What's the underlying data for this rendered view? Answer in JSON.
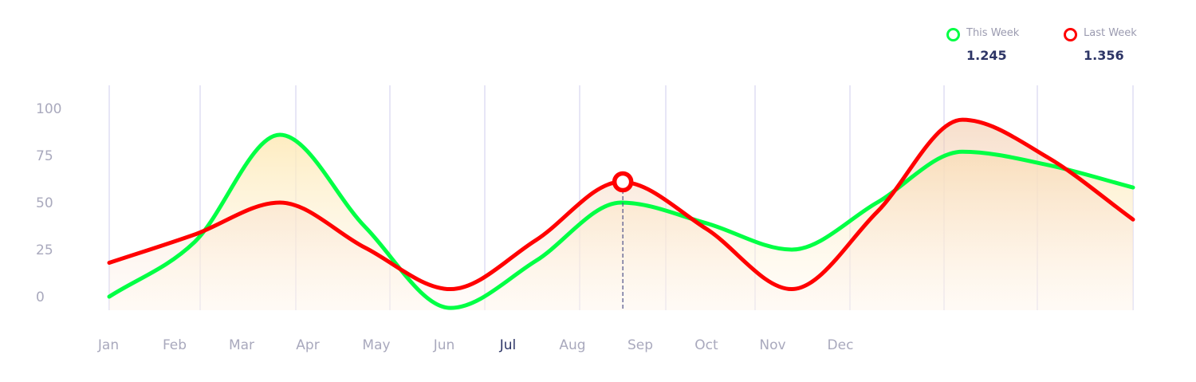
{
  "legend": {
    "items": [
      {
        "label": "This Week",
        "value": "1.245",
        "color": "#00ff44"
      },
      {
        "label": "Last Week",
        "value": "1.356",
        "color": "#ff0000"
      }
    ]
  },
  "chart_data": {
    "type": "line",
    "categories": [
      "Jan",
      "Feb",
      "Mar",
      "Apr",
      "May",
      "Jun",
      "Jul",
      "Aug",
      "Sep",
      "Oct",
      "Nov",
      "Dec"
    ],
    "active_category": "Jul",
    "y_ticks": [
      0,
      25,
      50,
      75,
      100
    ],
    "ylim": [
      -7,
      113
    ],
    "grid": "vertical",
    "legend_position": "top-right",
    "series": [
      {
        "name": "This Week",
        "color": "#00ff44",
        "x": [
          0,
          1,
          2,
          3,
          4,
          5,
          6,
          7,
          8,
          9,
          10,
          11,
          12
        ],
        "values": [
          0,
          29,
          86,
          37,
          -6,
          19,
          50,
          39,
          25,
          50,
          77,
          70,
          58
        ]
      },
      {
        "name": "Last Week",
        "color": "#ff0000",
        "x": [
          0,
          1,
          2,
          3,
          4,
          5,
          6,
          7,
          8,
          9,
          10,
          11,
          12
        ],
        "values": [
          18,
          33,
          50,
          26,
          4,
          30,
          61,
          36,
          4,
          45,
          94,
          74,
          41
        ]
      }
    ],
    "highlight": {
      "series": "Last Week",
      "x": 6.02,
      "value": 61
    }
  }
}
